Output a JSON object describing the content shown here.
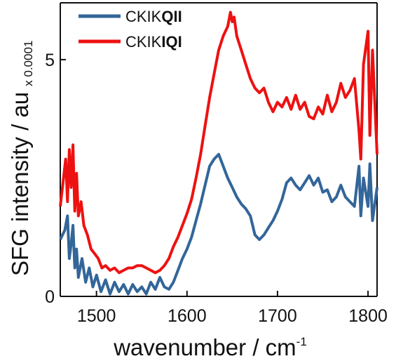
{
  "chart_data": {
    "type": "line",
    "xlabel": "wavenumber / cm",
    "xlabel_sup": "-1",
    "ylabel": "SFG intensity / au",
    "y_multiplier": "x 0.0001",
    "xlim": [
      1460,
      1810
    ],
    "ylim": [
      0,
      6.2
    ],
    "x_ticks": [
      1500,
      1600,
      1700,
      1800
    ],
    "y_ticks": [
      0,
      5
    ],
    "legend_position": "top-left",
    "colors": {
      "series_0": "#336699",
      "series_1": "#ee1111"
    },
    "series": [
      {
        "name_plain": "CKIK",
        "name_bold": "QII",
        "x": [
          1460,
          1465,
          1468,
          1470,
          1472,
          1474,
          1476,
          1478,
          1480,
          1484,
          1488,
          1492,
          1496,
          1500,
          1505,
          1510,
          1515,
          1520,
          1525,
          1530,
          1535,
          1540,
          1545,
          1550,
          1555,
          1560,
          1565,
          1570,
          1575,
          1580,
          1585,
          1590,
          1595,
          1600,
          1605,
          1610,
          1615,
          1620,
          1625,
          1630,
          1635,
          1640,
          1645,
          1650,
          1655,
          1660,
          1665,
          1670,
          1675,
          1680,
          1685,
          1690,
          1695,
          1700,
          1705,
          1710,
          1715,
          1720,
          1725,
          1730,
          1735,
          1740,
          1745,
          1750,
          1755,
          1760,
          1765,
          1770,
          1775,
          1780,
          1785,
          1790,
          1792,
          1795,
          1800,
          1802,
          1805,
          1810
        ],
        "values": [
          1.2,
          1.4,
          1.7,
          0.8,
          1.1,
          1.5,
          0.6,
          1.0,
          0.4,
          0.8,
          0.3,
          0.6,
          0.2,
          0.45,
          0.1,
          0.35,
          0.05,
          0.3,
          0.1,
          0.25,
          0.05,
          0.25,
          0.1,
          0.2,
          0.05,
          0.3,
          0.15,
          0.4,
          0.2,
          0.15,
          0.3,
          0.55,
          0.8,
          1.0,
          1.25,
          1.6,
          1.95,
          2.35,
          2.75,
          2.9,
          3.0,
          2.75,
          2.5,
          2.3,
          2.1,
          1.95,
          1.85,
          1.7,
          1.3,
          1.2,
          1.3,
          1.45,
          1.6,
          1.8,
          2.05,
          2.4,
          2.5,
          2.35,
          2.25,
          2.4,
          2.55,
          2.35,
          2.5,
          2.2,
          2.25,
          2.0,
          2.1,
          2.35,
          2.1,
          2.0,
          1.9,
          2.75,
          1.7,
          2.5,
          1.9,
          2.8,
          1.6,
          2.3
        ]
      },
      {
        "name_plain": "CKIK",
        "name_bold": "IQI",
        "x": [
          1460,
          1463,
          1466,
          1468,
          1470,
          1472,
          1474,
          1476,
          1478,
          1480,
          1483,
          1486,
          1490,
          1494,
          1498,
          1502,
          1506,
          1510,
          1515,
          1520,
          1525,
          1530,
          1535,
          1540,
          1545,
          1550,
          1555,
          1560,
          1565,
          1570,
          1575,
          1580,
          1585,
          1590,
          1595,
          1600,
          1605,
          1610,
          1615,
          1620,
          1625,
          1630,
          1635,
          1640,
          1645,
          1648,
          1650,
          1652,
          1655,
          1660,
          1665,
          1670,
          1675,
          1680,
          1685,
          1690,
          1695,
          1700,
          1705,
          1710,
          1715,
          1720,
          1725,
          1730,
          1735,
          1740,
          1745,
          1750,
          1755,
          1760,
          1765,
          1770,
          1775,
          1780,
          1785,
          1790,
          1792,
          1795,
          1800,
          1802,
          1805,
          1810
        ],
        "values": [
          1.9,
          2.4,
          2.9,
          2.0,
          3.1,
          2.3,
          3.2,
          1.8,
          2.6,
          1.7,
          2.0,
          1.5,
          1.3,
          1.0,
          0.9,
          0.8,
          0.6,
          0.65,
          0.55,
          0.6,
          0.5,
          0.55,
          0.6,
          0.6,
          0.65,
          0.65,
          0.6,
          0.55,
          0.5,
          0.55,
          0.65,
          0.8,
          1.05,
          1.25,
          1.5,
          1.75,
          2.05,
          2.5,
          3.0,
          3.6,
          4.2,
          4.7,
          5.2,
          5.5,
          5.7,
          6.0,
          5.8,
          5.9,
          5.5,
          5.2,
          4.9,
          4.6,
          4.4,
          4.3,
          4.4,
          4.1,
          3.9,
          4.1,
          4.0,
          4.2,
          3.95,
          4.25,
          3.95,
          4.1,
          3.8,
          3.75,
          4.0,
          3.85,
          4.25,
          3.9,
          4.1,
          4.5,
          4.2,
          4.35,
          4.6,
          3.5,
          2.9,
          4.9,
          5.6,
          3.4,
          5.2,
          3.0
        ]
      }
    ]
  }
}
